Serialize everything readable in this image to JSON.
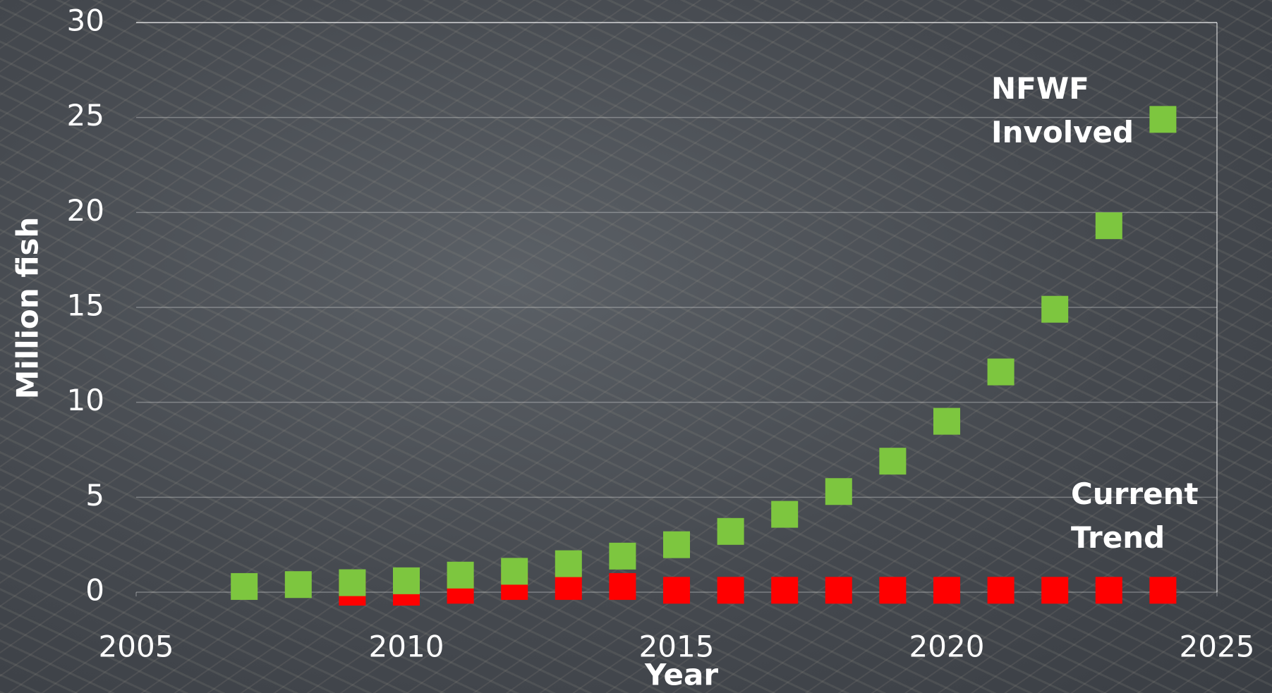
{
  "chart_data": {
    "type": "scatter",
    "x_label": "Year",
    "y_label": "Million fish",
    "xlim": [
      2005,
      2025
    ],
    "xticks": [
      2005,
      2010,
      2015,
      2020,
      2025
    ],
    "ylim": [
      0,
      30
    ],
    "yticks": [
      0,
      5,
      10,
      15,
      20,
      25,
      30
    ],
    "grid": true,
    "marker": "square",
    "series": [
      {
        "name": "Current Trend",
        "color": "#ff0000",
        "x": [
          2009,
          2010,
          2011,
          2012,
          2013,
          2014,
          2015,
          2016,
          2017,
          2018,
          2019,
          2020,
          2021,
          2022,
          2023,
          2024
        ],
        "values": [
          0,
          0,
          0.1,
          0.3,
          0.3,
          0.3,
          0.1,
          0.1,
          0.1,
          0.1,
          0.1,
          0.1,
          0.1,
          0.1,
          0.1,
          0.1
        ]
      },
      {
        "name": "NFWF Involved",
        "color": "#7dc63f",
        "x": [
          2007,
          2008,
          2009,
          2010,
          2011,
          2012,
          2013,
          2014,
          2015,
          2016,
          2017,
          2018,
          2019,
          2020,
          2021,
          2022,
          2023,
          2024
        ],
        "values": [
          0.3,
          0.4,
          0.5,
          0.6,
          0.9,
          1.1,
          1.5,
          1.9,
          2.5,
          3.2,
          4.1,
          5.3,
          6.9,
          9.0,
          11.6,
          14.9,
          19.3,
          24.9
        ]
      }
    ]
  }
}
